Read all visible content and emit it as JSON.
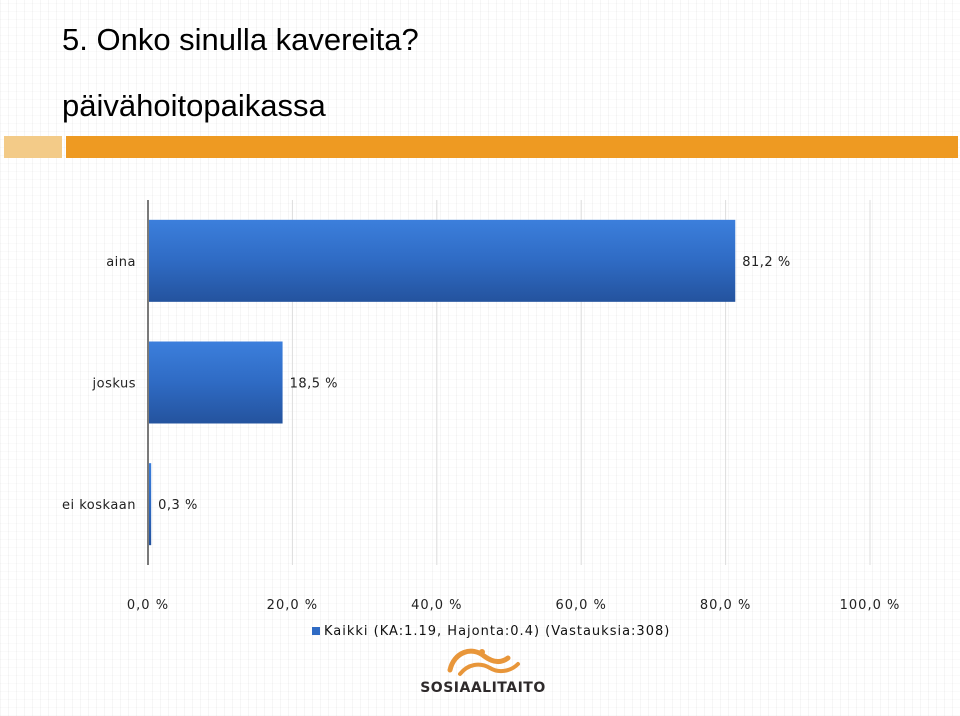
{
  "slide": {
    "title_line1": "5. Onko sinulla kavereita?",
    "title_line2": "päivähoitopaikassa",
    "accent_colors": {
      "light": "#f3cb88",
      "dark": "#ee9a22"
    }
  },
  "chart_data": {
    "type": "bar",
    "orientation": "horizontal",
    "categories": [
      "aina",
      "joskus",
      "ei koskaan"
    ],
    "series": [
      {
        "name": "Kaikki (KA:1.19, Hajonta:0.4) (Vastauksia:308)",
        "values": [
          81.2,
          18.5,
          0.3
        ],
        "color": "#2f6bc4"
      }
    ],
    "value_labels": [
      "81,2 %",
      "18,5 %",
      "0,3 %"
    ],
    "xlim": [
      0,
      100
    ],
    "xticks": [
      0,
      20,
      40,
      60,
      80,
      100
    ],
    "xtick_labels": [
      "0,0 %",
      "20,0 %",
      "40,0 %",
      "60,0 %",
      "80,0 %",
      "100,0 %"
    ],
    "grid": true,
    "legend_position": "bottom",
    "legend_label": "Kaikki (KA:1.19, Hajonta:0.4) (Vastauksia:308)"
  },
  "logo": {
    "text": "SOSIAALITAITO",
    "icon": "sosiaalitaito-swirl-logo",
    "colors": {
      "orange": "#e8963a",
      "dark": "#2e2a2b"
    }
  }
}
